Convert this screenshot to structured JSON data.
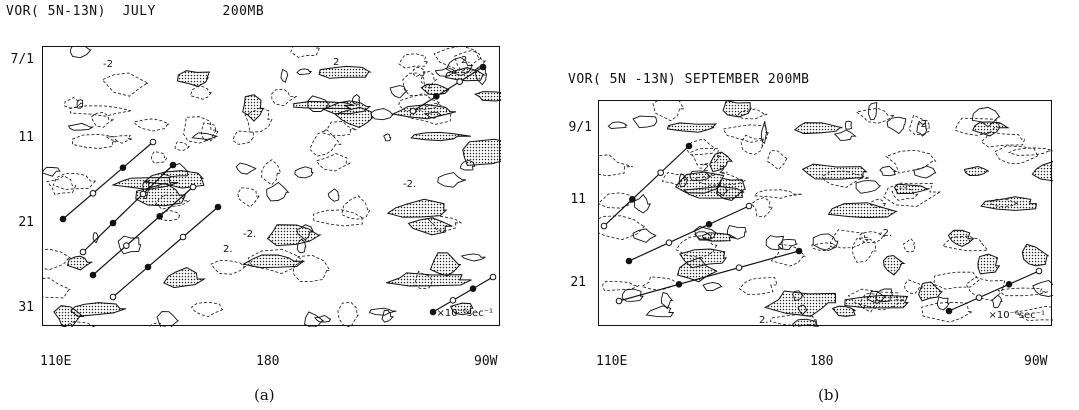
{
  "panels": [
    {
      "id": "a",
      "title_left": "VOR( 5N-13N)",
      "title_month": "JULY",
      "title_level": "200MB",
      "y_ticks": [
        "7/1",
        "11",
        "21",
        "31"
      ],
      "x_ticks": [
        "110E",
        "180",
        "90W"
      ],
      "units": "×10⁻⁶sec⁻¹",
      "contour_labels": [
        "2.",
        "-2",
        "2",
        "-2.",
        "-2.",
        "2."
      ],
      "caption": "(a)"
    },
    {
      "id": "b",
      "title_left": "VOR( 5N -13N)",
      "title_month": "SEPTEMBER",
      "title_level": "200MB",
      "y_ticks": [
        "9/1",
        "11",
        "21"
      ],
      "x_ticks": [
        "110E",
        "180",
        "90W"
      ],
      "units": "×10⁻⁶sec⁻¹",
      "contour_labels": [
        "-2",
        "2.",
        "-2",
        "-2.",
        "2."
      ],
      "caption": "(b)"
    }
  ]
}
